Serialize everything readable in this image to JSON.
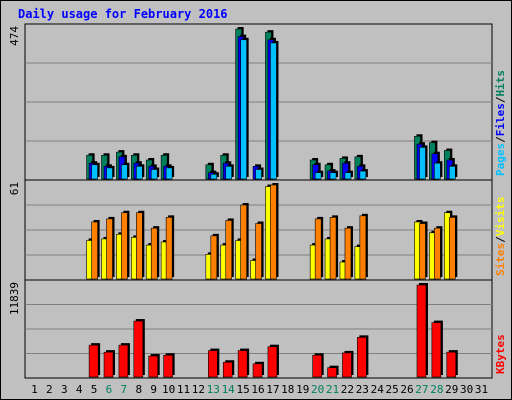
{
  "title": "Daily usage for February 2016",
  "colors": {
    "hits": "#00805c",
    "files": "#0000ff",
    "pages": "#00c0ff",
    "visits": "#ffff00",
    "sites": "#ff8000",
    "kbytes": "#ff0000",
    "weekend_label": "#00805c",
    "weekday_label": "#000000",
    "background": "#c0c0c0",
    "plot_background": "#c0c0c0",
    "grid": "#808080"
  },
  "panels": {
    "top": {
      "max_label": "474",
      "legend": [
        "Pages",
        "/",
        "Files",
        "/",
        "Hits"
      ]
    },
    "middle": {
      "max_label": "61",
      "legend": [
        "Sites",
        "/",
        "Visits"
      ]
    },
    "bottom": {
      "max_label": "11839",
      "legend": [
        "KBytes"
      ]
    }
  },
  "chart_data": {
    "type": "bar",
    "title": "Daily usage for February 2016",
    "categories": [
      "1",
      "2",
      "3",
      "4",
      "5",
      "6",
      "7",
      "8",
      "9",
      "10",
      "11",
      "12",
      "13",
      "14",
      "15",
      "16",
      "17",
      "18",
      "19",
      "20",
      "21",
      "22",
      "23",
      "24",
      "25",
      "26",
      "27",
      "28",
      "29",
      "30",
      "31"
    ],
    "weekend_days": [
      "6",
      "7",
      "13",
      "14",
      "20",
      "21",
      "27",
      "28"
    ],
    "charts": [
      {
        "panel": "top",
        "ylim": [
          0,
          474
        ],
        "series": [
          {
            "name": "Hits",
            "values": [
              0,
              0,
              0,
              0,
              75,
              75,
              85,
              75,
              60,
              75,
              0,
              0,
              45,
              75,
              474,
              0,
              464,
              0,
              0,
              60,
              45,
              65,
              70,
              0,
              0,
              0,
              135,
              115,
              90,
              0,
              0
            ]
          },
          {
            "name": "Files",
            "values": [
              0,
              0,
              0,
              0,
              50,
              40,
              70,
              50,
              40,
              40,
              0,
              0,
              20,
              50,
              450,
              40,
              440,
              0,
              0,
              45,
              25,
              50,
              40,
              0,
              0,
              0,
              110,
              80,
              60,
              0,
              0
            ]
          },
          {
            "name": "Pages",
            "values": [
              0,
              0,
              0,
              0,
              45,
              35,
              45,
              40,
              30,
              35,
              0,
              0,
              15,
              40,
              440,
              30,
              430,
              0,
              0,
              20,
              20,
              20,
              25,
              0,
              0,
              0,
              100,
              50,
              40,
              0,
              0
            ]
          }
        ]
      },
      {
        "panel": "middle",
        "ylim": [
          0,
          61
        ],
        "series": [
          {
            "name": "Sites",
            "values": [
              0,
              0,
              0,
              0,
              37,
              39,
              43,
              43,
              33,
              40,
              0,
              0,
              28,
              38,
              48,
              36,
              61,
              0,
              0,
              39,
              40,
              33,
              41,
              0,
              0,
              0,
              36,
              33,
              40,
              0,
              0
            ]
          },
          {
            "name": "Visits",
            "values": [
              0,
              0,
              0,
              0,
              25,
              26,
              29,
              27,
              22,
              24,
              0,
              0,
              16,
              22,
              25,
              12,
              60,
              0,
              0,
              22,
              26,
              11,
              21,
              0,
              0,
              0,
              37,
              30,
              43,
              0,
              0
            ]
          }
        ]
      },
      {
        "panel": "bottom",
        "ylim": [
          0,
          11839
        ],
        "series": [
          {
            "name": "KBytes",
            "values": [
              0,
              0,
              0,
              0,
              4100,
              3200,
              4100,
              7200,
              2700,
              2800,
              0,
              0,
              3400,
              1900,
              3400,
              1700,
              3900,
              0,
              0,
              2800,
              1200,
              3100,
              5100,
              0,
              0,
              0,
              11839,
              7000,
              3200,
              0,
              0
            ]
          }
        ]
      }
    ]
  }
}
